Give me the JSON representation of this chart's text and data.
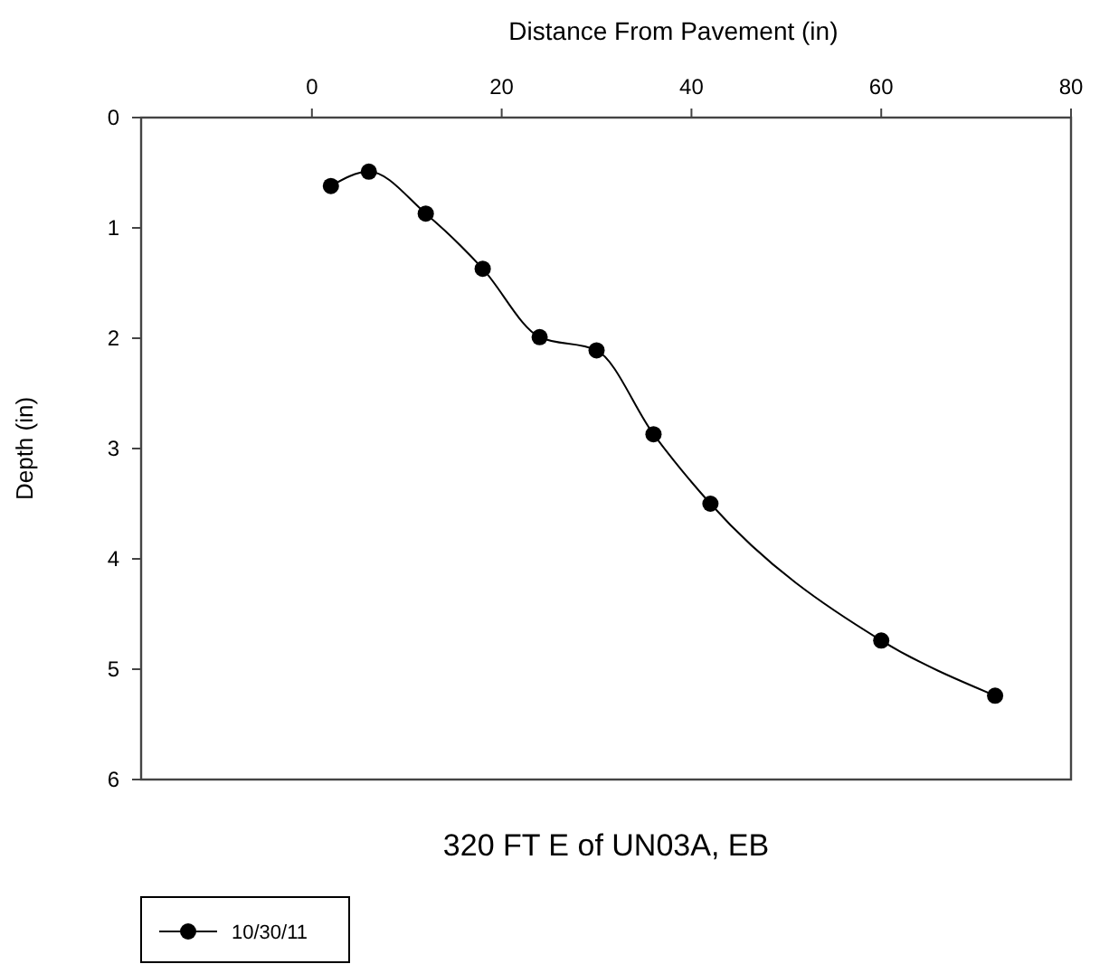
{
  "chart_data": {
    "type": "line",
    "title": "320 FT E of UN03A,  EB",
    "xlabel": "Distance From Pavement (in)",
    "ylabel": "Depth (in)",
    "x": [
      2,
      6,
      12,
      18,
      24,
      30,
      36,
      42,
      60,
      72
    ],
    "series": [
      {
        "name": "10/30/11",
        "color": "#000000",
        "values": [
          0.62,
          0.49,
          0.87,
          1.37,
          1.99,
          2.11,
          2.87,
          3.5,
          4.74,
          5.24
        ]
      }
    ],
    "xlim": [
      -18,
      80
    ],
    "xticks": [
      0,
      20,
      40,
      60,
      80
    ],
    "ylim": [
      6,
      0
    ],
    "yticks": [
      0,
      1,
      2,
      3,
      4,
      5,
      6
    ],
    "marker": "circle",
    "line_style": "solid",
    "grid": false,
    "legend": "bottom left"
  }
}
